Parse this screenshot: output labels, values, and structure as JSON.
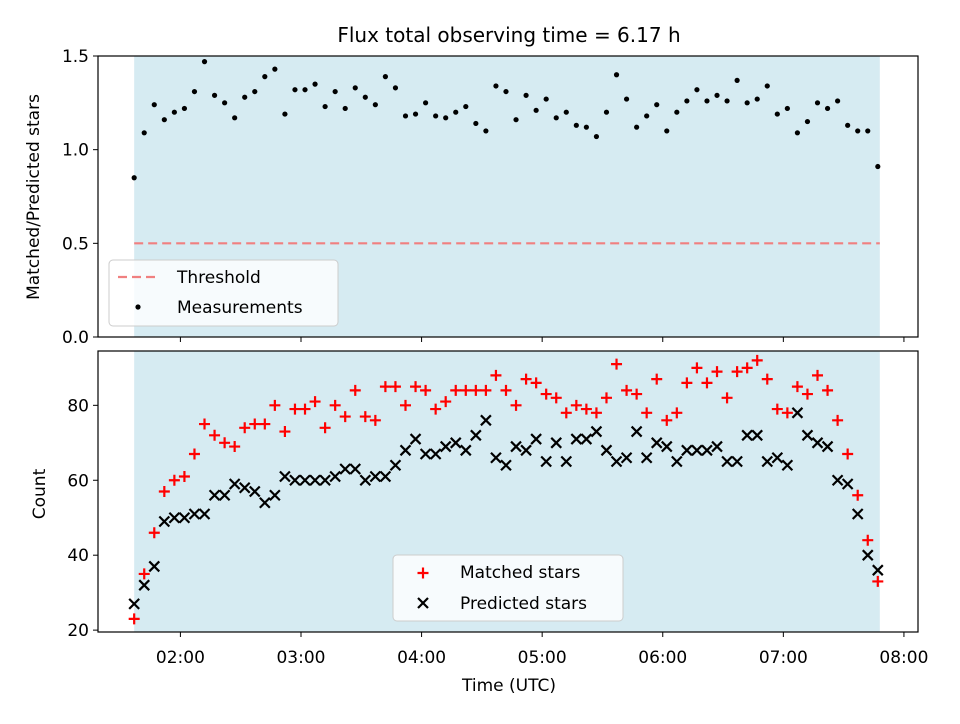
{
  "figure": {
    "title": "Flux total observing time = 6.17 h",
    "xlabel": "Time (UTC)"
  },
  "colors": {
    "shade": "#add8e6",
    "threshold": "#f08080",
    "matched": "#ff0000",
    "predicted": "#000000",
    "measurements": "#000000"
  },
  "chart_data": [
    {
      "type": "scatter",
      "panel": "top",
      "ylabel": "Matched/Predicted stars",
      "xlim": [
        "01:19",
        "08:07"
      ],
      "ylim": [
        0,
        1.5
      ],
      "yticks": [
        0.0,
        0.5,
        1.0,
        1.5
      ],
      "ytick_labels": [
        "0.0",
        "0.5",
        "1.0",
        "1.5"
      ],
      "xticks": [
        "02:00",
        "03:00",
        "04:00",
        "05:00",
        "06:00",
        "07:00",
        "08:00"
      ],
      "shaded_span": [
        "01:37",
        "07:48"
      ],
      "legend_position": "lower-left",
      "threshold": {
        "name": "Threshold",
        "value": 0.5,
        "style": "dashed"
      },
      "series": [
        {
          "name": "Measurements",
          "x": [
            "01:37",
            "01:42",
            "01:47",
            "01:52",
            "01:57",
            "02:02",
            "02:07",
            "02:12",
            "02:17",
            "02:22",
            "02:27",
            "02:32",
            "02:37",
            "02:42",
            "02:47",
            "02:52",
            "02:57",
            "03:02",
            "03:07",
            "03:12",
            "03:17",
            "03:22",
            "03:27",
            "03:32",
            "03:37",
            "03:42",
            "03:47",
            "03:52",
            "03:57",
            "04:02",
            "04:07",
            "04:12",
            "04:17",
            "04:22",
            "04:27",
            "04:32",
            "04:37",
            "04:42",
            "04:47",
            "04:52",
            "04:57",
            "05:02",
            "05:07",
            "05:12",
            "05:17",
            "05:22",
            "05:27",
            "05:32",
            "05:37",
            "05:42",
            "05:47",
            "05:52",
            "05:57",
            "06:02",
            "06:07",
            "06:12",
            "06:17",
            "06:22",
            "06:27",
            "06:32",
            "06:37",
            "06:42",
            "06:47",
            "06:52",
            "06:57",
            "07:02",
            "07:07",
            "07:12",
            "07:17",
            "07:22",
            "07:27",
            "07:32",
            "07:37",
            "07:42",
            "07:47"
          ],
          "y": [
            0.85,
            1.09,
            1.24,
            1.16,
            1.2,
            1.22,
            1.31,
            1.47,
            1.29,
            1.25,
            1.17,
            1.28,
            1.31,
            1.39,
            1.43,
            1.19,
            1.32,
            1.32,
            1.35,
            1.23,
            1.31,
            1.22,
            1.33,
            1.28,
            1.24,
            1.39,
            1.33,
            1.18,
            1.19,
            1.25,
            1.18,
            1.17,
            1.2,
            1.23,
            1.14,
            1.1,
            1.34,
            1.31,
            1.16,
            1.29,
            1.21,
            1.27,
            1.17,
            1.2,
            1.13,
            1.12,
            1.07,
            1.2,
            1.4,
            1.27,
            1.12,
            1.18,
            1.24,
            1.1,
            1.2,
            1.26,
            1.32,
            1.26,
            1.29,
            1.26,
            1.37,
            1.25,
            1.27,
            1.34,
            1.19,
            1.22,
            1.09,
            1.15,
            1.25,
            1.22,
            1.26,
            1.13,
            1.1,
            1.1,
            0.91
          ]
        }
      ]
    },
    {
      "type": "scatter",
      "panel": "bottom",
      "ylabel": "Count",
      "xlim": [
        "01:19",
        "08:07"
      ],
      "ylim": [
        19.5,
        94.5
      ],
      "yticks": [
        20,
        40,
        60,
        80
      ],
      "ytick_labels": [
        "20",
        "40",
        "60",
        "80"
      ],
      "xticks": [
        "02:00",
        "03:00",
        "04:00",
        "05:00",
        "06:00",
        "07:00",
        "08:00"
      ],
      "shaded_span": [
        "01:37",
        "07:48"
      ],
      "legend_position": "lower-center",
      "series": [
        {
          "name": "Matched stars",
          "marker": "plus",
          "x": [
            "01:37",
            "01:42",
            "01:47",
            "01:52",
            "01:57",
            "02:02",
            "02:07",
            "02:12",
            "02:17",
            "02:22",
            "02:27",
            "02:32",
            "02:37",
            "02:42",
            "02:47",
            "02:52",
            "02:57",
            "03:02",
            "03:07",
            "03:12",
            "03:17",
            "03:22",
            "03:27",
            "03:32",
            "03:37",
            "03:42",
            "03:47",
            "03:52",
            "03:57",
            "04:02",
            "04:07",
            "04:12",
            "04:17",
            "04:22",
            "04:27",
            "04:32",
            "04:37",
            "04:42",
            "04:47",
            "04:52",
            "04:57",
            "05:02",
            "05:07",
            "05:12",
            "05:17",
            "05:22",
            "05:27",
            "05:32",
            "05:37",
            "05:42",
            "05:47",
            "05:52",
            "05:57",
            "06:02",
            "06:07",
            "06:12",
            "06:17",
            "06:22",
            "06:27",
            "06:32",
            "06:37",
            "06:42",
            "06:47",
            "06:52",
            "06:57",
            "07:02",
            "07:07",
            "07:12",
            "07:17",
            "07:22",
            "07:27",
            "07:32",
            "07:37",
            "07:42",
            "07:47"
          ],
          "y": [
            23,
            35,
            46,
            57,
            60,
            61,
            67,
            75,
            72,
            70,
            69,
            74,
            75,
            75,
            80,
            73,
            79,
            79,
            81,
            74,
            80,
            77,
            84,
            77,
            76,
            85,
            85,
            80,
            85,
            84,
            79,
            81,
            84,
            84,
            84,
            84,
            88,
            84,
            80,
            87,
            86,
            83,
            82,
            78,
            80,
            79,
            78,
            82,
            91,
            84,
            83,
            78,
            87,
            76,
            78,
            86,
            90,
            86,
            89,
            82,
            89,
            90,
            92,
            87,
            79,
            78,
            85,
            83,
            88,
            84,
            76,
            67,
            56,
            44,
            33
          ]
        },
        {
          "name": "Predicted stars",
          "marker": "x",
          "x": [
            "01:37",
            "01:42",
            "01:47",
            "01:52",
            "01:57",
            "02:02",
            "02:07",
            "02:12",
            "02:17",
            "02:22",
            "02:27",
            "02:32",
            "02:37",
            "02:42",
            "02:47",
            "02:52",
            "02:57",
            "03:02",
            "03:07",
            "03:12",
            "03:17",
            "03:22",
            "03:27",
            "03:32",
            "03:37",
            "03:42",
            "03:47",
            "03:52",
            "03:57",
            "04:02",
            "04:07",
            "04:12",
            "04:17",
            "04:22",
            "04:27",
            "04:32",
            "04:37",
            "04:42",
            "04:47",
            "04:52",
            "04:57",
            "05:02",
            "05:07",
            "05:12",
            "05:17",
            "05:22",
            "05:27",
            "05:32",
            "05:37",
            "05:42",
            "05:47",
            "05:52",
            "05:57",
            "06:02",
            "06:07",
            "06:12",
            "06:17",
            "06:22",
            "06:27",
            "06:32",
            "06:37",
            "06:42",
            "06:47",
            "06:52",
            "06:57",
            "07:02",
            "07:07",
            "07:12",
            "07:17",
            "07:22",
            "07:27",
            "07:32",
            "07:37",
            "07:42",
            "07:47"
          ],
          "y": [
            27,
            32,
            37,
            49,
            50,
            50,
            51,
            51,
            56,
            56,
            59,
            58,
            57,
            54,
            56,
            61,
            60,
            60,
            60,
            60,
            61,
            63,
            63,
            60,
            61,
            61,
            64,
            68,
            71,
            67,
            67,
            69,
            70,
            68,
            72,
            76,
            66,
            64,
            69,
            68,
            71,
            65,
            70,
            65,
            71,
            71,
            73,
            68,
            65,
            66,
            73,
            66,
            70,
            69,
            65,
            68,
            68,
            68,
            69,
            65,
            65,
            72,
            72,
            65,
            66,
            64,
            78,
            72,
            70,
            69,
            60,
            59,
            51,
            40,
            36
          ]
        }
      ]
    }
  ]
}
